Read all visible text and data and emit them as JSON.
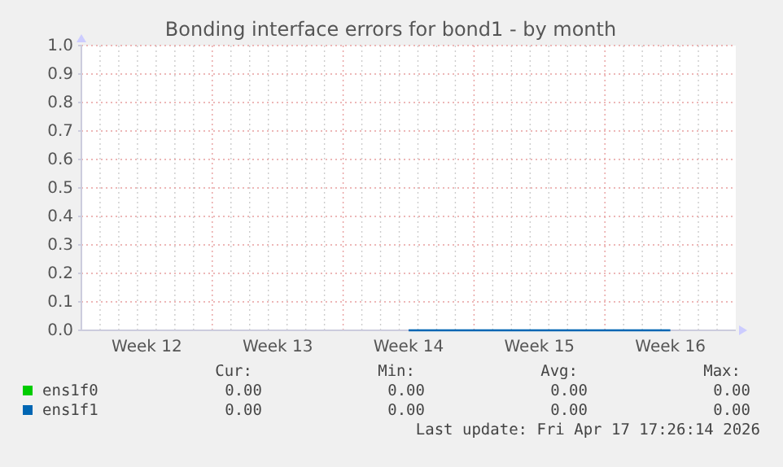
{
  "chart_data": {
    "type": "line",
    "title": "Bonding interface errors for bond1 - by month",
    "categories": [
      "Week 12",
      "Week 13",
      "Week 14",
      "Week 15",
      "Week 16"
    ],
    "ylim": [
      0,
      1
    ],
    "yticks": [
      {
        "value": 0,
        "label": "0.0"
      },
      {
        "value": 0.1,
        "label": "0.1"
      },
      {
        "value": 0.2,
        "label": "0.2"
      },
      {
        "value": 0.3,
        "label": "0.3"
      },
      {
        "value": 0.4,
        "label": "0.4"
      },
      {
        "value": 0.5,
        "label": "0.5"
      },
      {
        "value": 0.6,
        "label": "0.6"
      },
      {
        "value": 0.7,
        "label": "0.7"
      },
      {
        "value": 0.8,
        "label": "0.8"
      },
      {
        "value": 0.9,
        "label": "0.9"
      },
      {
        "value": 1,
        "label": "1.0"
      }
    ],
    "grid": true,
    "legend": "bottom",
    "marker": "none",
    "line_style": "solid",
    "series": [
      {
        "name": "ens1f0",
        "color": "#00cc00",
        "values": [
          null,
          null,
          null,
          null,
          null
        ]
      },
      {
        "name": "ens1f1",
        "color": "#0066b3",
        "values": [
          null,
          null,
          0,
          0,
          0
        ]
      }
    ],
    "annotations": [
      "Cur:",
      "Min:",
      "Avg:",
      "Max:",
      "0.00",
      "0.00",
      "0.00",
      "0.00",
      "0.00",
      "0.00",
      "0.00",
      "0.00",
      "Last update: Fri Apr 17 17:26:14 2026"
    ]
  }
}
